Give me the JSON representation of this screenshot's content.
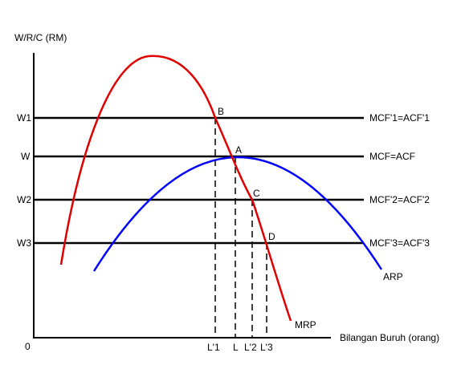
{
  "axes": {
    "y_label": "W/R/C (RM)",
    "x_label": "Bilangan Buruh (orang)",
    "origin": "0"
  },
  "wage_levels": [
    {
      "wage": "W1",
      "line": "MCF'1=ACF'1",
      "point": "B",
      "labour": "L'1"
    },
    {
      "wage": "W",
      "line": "MCF=ACF",
      "point": "A",
      "labour": "L"
    },
    {
      "wage": "W2",
      "line": "MCF'2=ACF'2",
      "point": "C",
      "labour": "L'2"
    },
    {
      "wage": "W3",
      "line": "MCF'3=ACF'3",
      "point": "D",
      "labour": "L'3"
    }
  ],
  "curves": {
    "mrp": {
      "label": "MRP",
      "color": "#e00000"
    },
    "arp": {
      "label": "ARP",
      "color": "#0000ff"
    }
  }
}
